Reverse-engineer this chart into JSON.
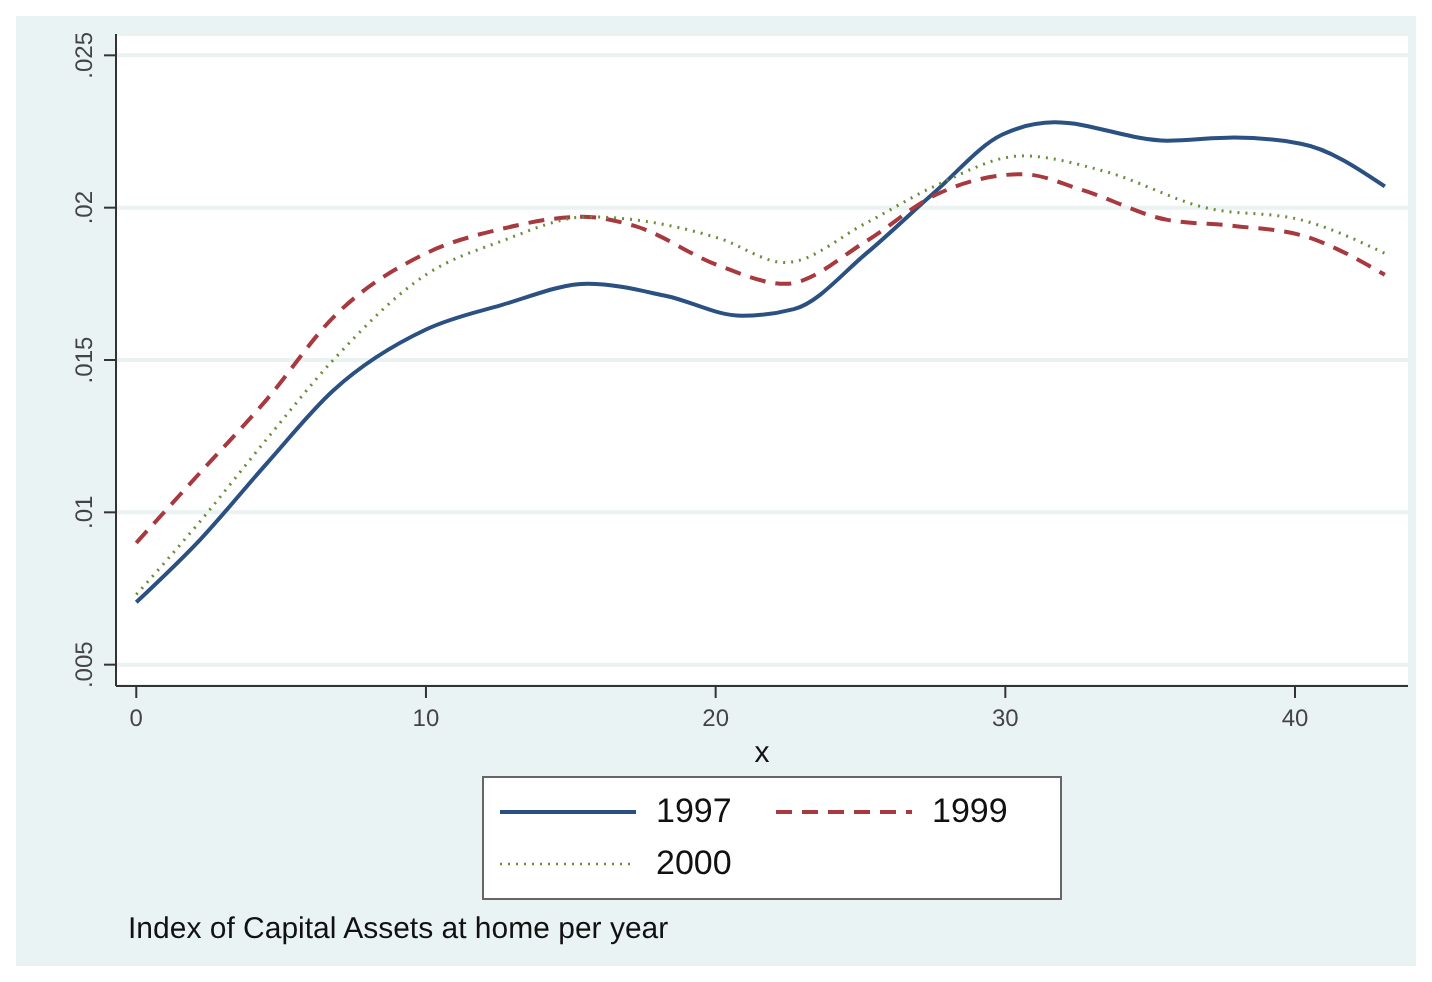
{
  "chart_data": {
    "type": "line",
    "xlabel": "x",
    "annotations": [
      "Index of Capital Assets at home per year"
    ],
    "xlim": [
      -0.7,
      43.9
    ],
    "ylim": [
      0.0043,
      0.0257
    ],
    "xticks": [
      0,
      10,
      20,
      30,
      40
    ],
    "yticks": [
      {
        "value": 0.005,
        "label": ".005"
      },
      {
        "value": 0.01,
        "label": ".01"
      },
      {
        "value": 0.015,
        "label": ".015"
      },
      {
        "value": 0.02,
        "label": ".02"
      },
      {
        "value": 0.025,
        "label": ".025"
      }
    ],
    "grid": "y",
    "legend": "bottom",
    "marker": "none",
    "series": [
      {
        "name": "1997",
        "color": "#2a5181",
        "line_style": "solid",
        "x": [
          0,
          2.2,
          4.5,
          6.8,
          10,
          12.6,
          15.6,
          18.3,
          20.9,
          22.7,
          25.2,
          27.55,
          29.9,
          31.7,
          35.6,
          37.9,
          40.2,
          43.1
        ],
        "values": [
          0.00705,
          0.0091,
          0.0116,
          0.014,
          0.016,
          0.0168,
          0.0175,
          0.0171,
          0.01645,
          0.01667,
          0.0185,
          0.0205,
          0.0224,
          0.0228,
          0.0222,
          0.0223,
          0.0221,
          0.0207
        ]
      },
      {
        "name": "1999",
        "color": "#a8393f",
        "line_style": "dashed",
        "x": [
          0,
          2.2,
          4.5,
          6.8,
          10,
          12.6,
          15.4,
          17.2,
          20.1,
          22.4,
          25.2,
          27.55,
          30.6,
          32.6,
          35.6,
          37.9,
          40.2,
          43.1
        ],
        "values": [
          0.009,
          0.0113,
          0.0137,
          0.0164,
          0.0185,
          0.0193,
          0.0197,
          0.0194,
          0.0181,
          0.0175,
          0.0189,
          0.0204,
          0.0211,
          0.0206,
          0.0196,
          0.0194,
          0.0191,
          0.0178
        ]
      },
      {
        "name": "2000",
        "color": "#6b8e3a",
        "line_style": "dotted",
        "x": [
          0,
          2.2,
          4.5,
          6.8,
          10,
          12.6,
          15.6,
          17.2,
          20.1,
          22.4,
          25.2,
          27.55,
          30.6,
          33.4,
          36.9,
          40.2,
          43.1
        ],
        "values": [
          0.0073,
          0.0097,
          0.0124,
          0.015,
          0.0178,
          0.0189,
          0.0197,
          0.0196,
          0.019,
          0.0182,
          0.0195,
          0.0207,
          0.0217,
          0.0212,
          0.02,
          0.0196,
          0.0185
        ]
      }
    ]
  }
}
